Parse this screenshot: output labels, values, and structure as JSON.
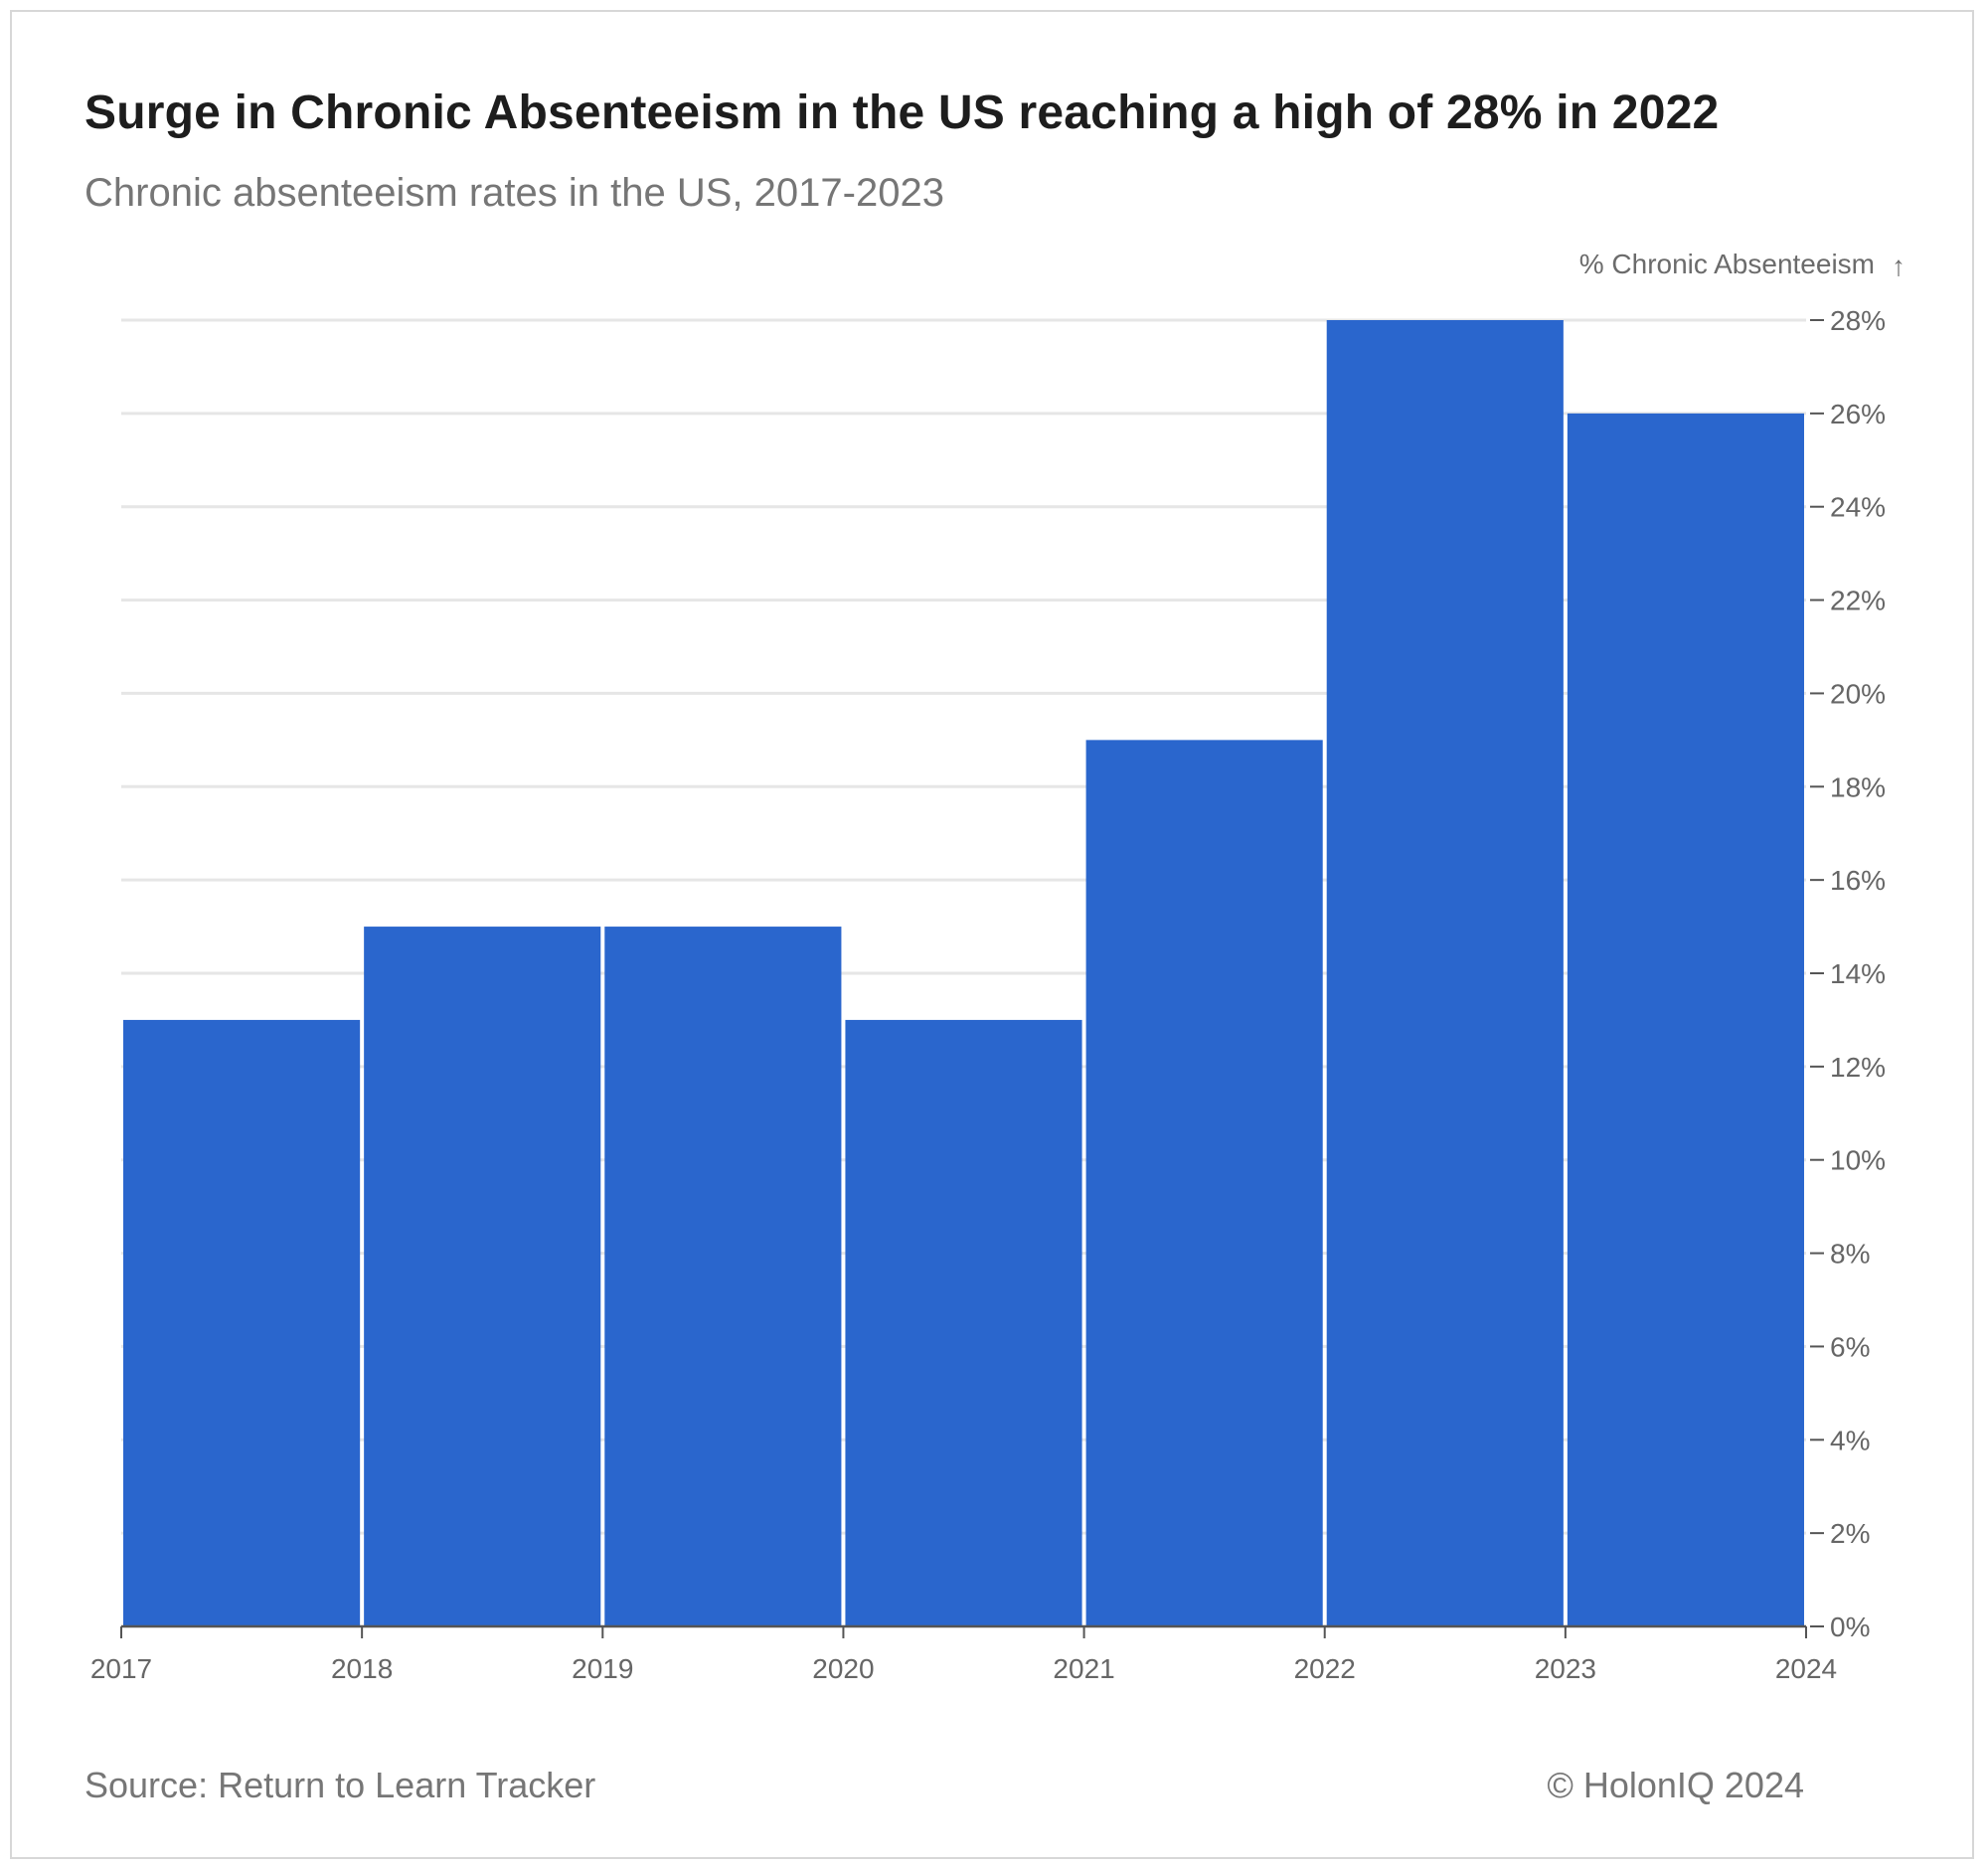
{
  "title": "Surge in Chronic Absenteeism in the US reaching a high of 28% in 2022",
  "subtitle": "Chronic absenteeism rates in the US, 2017-2023",
  "source": "Source: Return to Learn Tracker",
  "credit": "© HolonIQ 2024",
  "colors": {
    "bar": "#2a66cd",
    "grid": "#e6e6e6",
    "axis": "#555555",
    "text": "#666666"
  },
  "chart_data": {
    "type": "bar",
    "title": "Surge in Chronic Absenteeism in the US reaching a high of 28% in 2022",
    "subtitle": "Chronic absenteeism rates in the US, 2017-2023",
    "ylabel": "% Chronic Absenteeism",
    "ylabel_arrow": "↑",
    "x_ticks": [
      "2017",
      "2018",
      "2019",
      "2020",
      "2021",
      "2022",
      "2023",
      "2024"
    ],
    "bins": [
      {
        "start": 2017,
        "end": 2018,
        "value": 13
      },
      {
        "start": 2018,
        "end": 2019,
        "value": 15
      },
      {
        "start": 2019,
        "end": 2020,
        "value": 15
      },
      {
        "start": 2020,
        "end": 2021,
        "value": 13
      },
      {
        "start": 2021,
        "end": 2022,
        "value": 19
      },
      {
        "start": 2022,
        "end": 2023,
        "value": 28
      },
      {
        "start": 2023,
        "end": 2024,
        "value": 26
      }
    ],
    "y_ticks": [
      "0%",
      "2%",
      "4%",
      "6%",
      "8%",
      "10%",
      "12%",
      "14%",
      "16%",
      "18%",
      "20%",
      "22%",
      "24%",
      "26%",
      "28%"
    ],
    "ylim": [
      0,
      28
    ],
    "y_axis_side": "right",
    "grid": true
  }
}
